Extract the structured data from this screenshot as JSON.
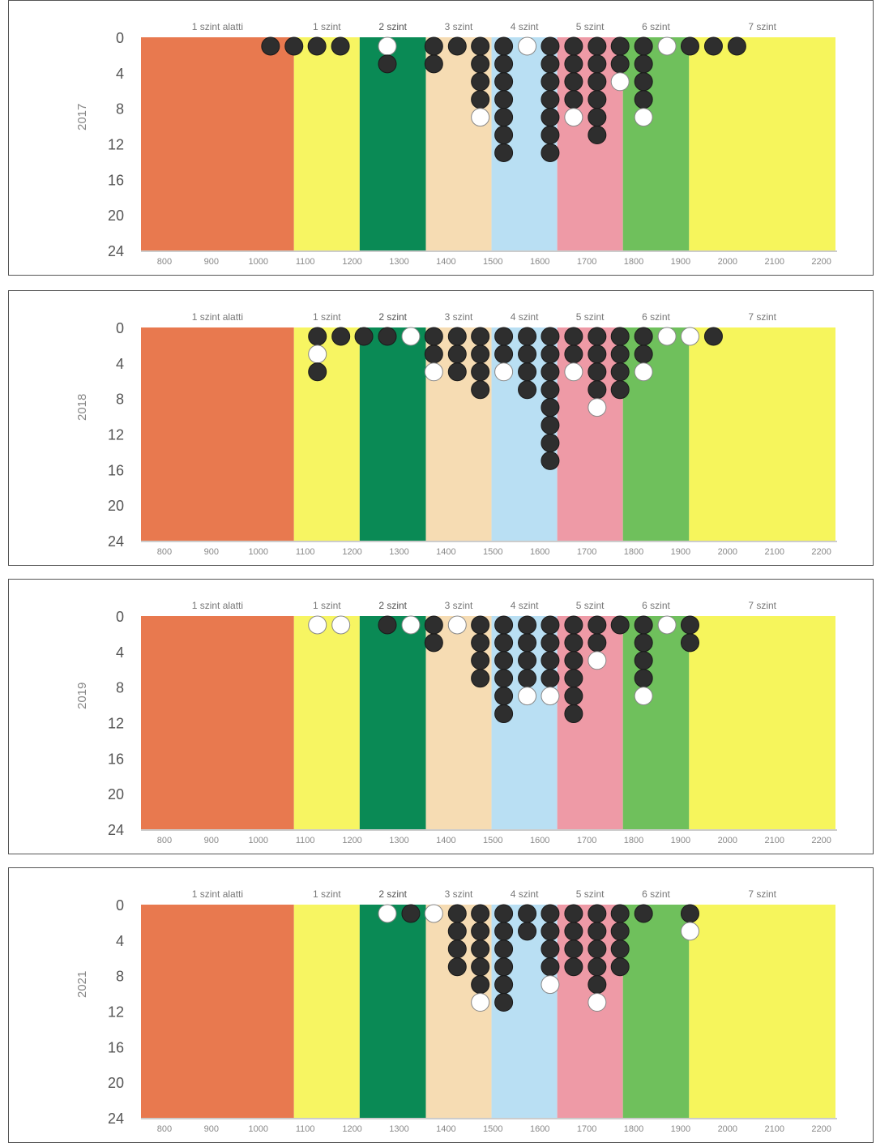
{
  "chart_data": [
    {
      "type": "scatter",
      "ylabel": "2017",
      "ylim": [
        0,
        24
      ],
      "xlim": [
        750,
        2230
      ],
      "yticks": [
        "0",
        "4",
        "8",
        "12",
        "16",
        "20",
        "24"
      ],
      "xticks": [
        "800",
        "900",
        "1000",
        "1100",
        "1200",
        "1300",
        "1400",
        "1500",
        "1600",
        "1700",
        "1800",
        "1900",
        "2000",
        "2100",
        "2200"
      ],
      "bands": [
        {
          "label": "1 szint alatti",
          "from": 750,
          "to": 1076,
          "color": "#e8794f"
        },
        {
          "label": "1 szint",
          "from": 1076,
          "to": 1216,
          "color": "#f7f562"
        },
        {
          "label": "2 szint",
          "from": 1216,
          "to": 1357,
          "color": "#0a8a55"
        },
        {
          "label": "3 szint",
          "from": 1357,
          "to": 1497,
          "color": "#f6dcb3"
        },
        {
          "label": "4 szint",
          "from": 1497,
          "to": 1637,
          "color": "#b9dff3"
        },
        {
          "label": "5 szint",
          "from": 1637,
          "to": 1777,
          "color": "#ee9aa6"
        },
        {
          "label": "6 szint",
          "from": 1777,
          "to": 1918,
          "color": "#6fc05c"
        },
        {
          "label": "7 szint",
          "from": 1918,
          "to": 2230,
          "color": "#f6f55c"
        }
      ],
      "columns": [
        {
          "x": 1026,
          "dots": "D"
        },
        {
          "x": 1076,
          "dots": "D"
        },
        {
          "x": 1125,
          "dots": "D"
        },
        {
          "x": 1175,
          "dots": "D"
        },
        {
          "x": 1275,
          "dots": "WD"
        },
        {
          "x": 1374,
          "dots": "DD"
        },
        {
          "x": 1424,
          "dots": "D"
        },
        {
          "x": 1473,
          "dots": "DDDDW"
        },
        {
          "x": 1523,
          "dots": "DDDDDDD"
        },
        {
          "x": 1573,
          "dots": "W"
        },
        {
          "x": 1622,
          "dots": "DDDDDDD"
        },
        {
          "x": 1672,
          "dots": "DDDDW"
        },
        {
          "x": 1722,
          "dots": "DDDDDD"
        },
        {
          "x": 1771,
          "dots": "DDW"
        },
        {
          "x": 1821,
          "dots": "DDDDW"
        },
        {
          "x": 1871,
          "dots": "W"
        },
        {
          "x": 1920,
          "dots": "D"
        },
        {
          "x": 1970,
          "dots": "D"
        },
        {
          "x": 2020,
          "dots": "D"
        }
      ]
    },
    {
      "type": "scatter",
      "ylabel": "2018",
      "ylim": [
        0,
        24
      ],
      "xlim": [
        750,
        2230
      ],
      "yticks": [
        "0",
        "4",
        "8",
        "12",
        "16",
        "20",
        "24"
      ],
      "xticks": [
        "800",
        "900",
        "1000",
        "1100",
        "1200",
        "1300",
        "1400",
        "1500",
        "1600",
        "1700",
        "1800",
        "1900",
        "2000",
        "2100",
        "2200"
      ],
      "bands": [
        {
          "label": "1 szint alatti",
          "from": 750,
          "to": 1076,
          "color": "#e8794f"
        },
        {
          "label": "1 szint",
          "from": 1076,
          "to": 1216,
          "color": "#f7f562"
        },
        {
          "label": "2 szint",
          "from": 1216,
          "to": 1357,
          "color": "#0a8a55"
        },
        {
          "label": "3 szint",
          "from": 1357,
          "to": 1497,
          "color": "#f6dcb3"
        },
        {
          "label": "4 szint",
          "from": 1497,
          "to": 1637,
          "color": "#b9dff3"
        },
        {
          "label": "5 szint",
          "from": 1637,
          "to": 1777,
          "color": "#ee9aa6"
        },
        {
          "label": "6 szint",
          "from": 1777,
          "to": 1918,
          "color": "#6fc05c"
        },
        {
          "label": "7 szint",
          "from": 1918,
          "to": 2230,
          "color": "#f6f55c"
        }
      ],
      "columns": [
        {
          "x": 1126,
          "dots": "DWD"
        },
        {
          "x": 1176,
          "dots": "D"
        },
        {
          "x": 1225,
          "dots": "D"
        },
        {
          "x": 1275,
          "dots": "D"
        },
        {
          "x": 1325,
          "dots": "W"
        },
        {
          "x": 1374,
          "dots": "DDW"
        },
        {
          "x": 1424,
          "dots": "DDD"
        },
        {
          "x": 1473,
          "dots": "DDDD"
        },
        {
          "x": 1523,
          "dots": "DDW"
        },
        {
          "x": 1573,
          "dots": "DDDD"
        },
        {
          "x": 1622,
          "dots": "DDDDDDDD"
        },
        {
          "x": 1672,
          "dots": "DDW"
        },
        {
          "x": 1722,
          "dots": "DDDDW"
        },
        {
          "x": 1771,
          "dots": "DDDD"
        },
        {
          "x": 1821,
          "dots": "DDW"
        },
        {
          "x": 1871,
          "dots": "W"
        },
        {
          "x": 1920,
          "dots": "W"
        },
        {
          "x": 1970,
          "dots": "D"
        }
      ]
    },
    {
      "type": "scatter",
      "ylabel": "2019",
      "ylim": [
        0,
        24
      ],
      "xlim": [
        750,
        2230
      ],
      "yticks": [
        "0",
        "4",
        "8",
        "12",
        "16",
        "20",
        "24"
      ],
      "xticks": [
        "800",
        "900",
        "1000",
        "1100",
        "1200",
        "1300",
        "1400",
        "1500",
        "1600",
        "1700",
        "1800",
        "1900",
        "2000",
        "2100",
        "2200"
      ],
      "bands": [
        {
          "label": "1 szint alatti",
          "from": 750,
          "to": 1076,
          "color": "#e8794f"
        },
        {
          "label": "1 szint",
          "from": 1076,
          "to": 1216,
          "color": "#f7f562"
        },
        {
          "label": "2 szint",
          "from": 1216,
          "to": 1357,
          "color": "#0a8a55"
        },
        {
          "label": "3 szint",
          "from": 1357,
          "to": 1497,
          "color": "#f6dcb3"
        },
        {
          "label": "4 szint",
          "from": 1497,
          "to": 1637,
          "color": "#b9dff3"
        },
        {
          "label": "5 szint",
          "from": 1637,
          "to": 1777,
          "color": "#ee9aa6"
        },
        {
          "label": "6 szint",
          "from": 1777,
          "to": 1918,
          "color": "#6fc05c"
        },
        {
          "label": "7 szint",
          "from": 1918,
          "to": 2230,
          "color": "#f6f55c"
        }
      ],
      "columns": [
        {
          "x": 1126,
          "dots": "W"
        },
        {
          "x": 1176,
          "dots": "W"
        },
        {
          "x": 1275,
          "dots": "D"
        },
        {
          "x": 1325,
          "dots": "W"
        },
        {
          "x": 1374,
          "dots": "DD"
        },
        {
          "x": 1424,
          "dots": "W"
        },
        {
          "x": 1473,
          "dots": "DDDD"
        },
        {
          "x": 1523,
          "dots": "DDDDDD"
        },
        {
          "x": 1573,
          "dots": "DDDDW"
        },
        {
          "x": 1622,
          "dots": "DDDDW"
        },
        {
          "x": 1672,
          "dots": "DDDDDD"
        },
        {
          "x": 1722,
          "dots": "DDW"
        },
        {
          "x": 1771,
          "dots": "D"
        },
        {
          "x": 1821,
          "dots": "DDDDW"
        },
        {
          "x": 1871,
          "dots": "W"
        },
        {
          "x": 1920,
          "dots": "DD"
        }
      ]
    },
    {
      "type": "scatter",
      "ylabel": "2021",
      "ylim": [
        0,
        24
      ],
      "xlim": [
        750,
        2230
      ],
      "yticks": [
        "0",
        "4",
        "8",
        "12",
        "16",
        "20",
        "24"
      ],
      "xticks": [
        "800",
        "900",
        "1000",
        "1100",
        "1200",
        "1300",
        "1400",
        "1500",
        "1600",
        "1700",
        "1800",
        "1900",
        "2000",
        "2100",
        "2200"
      ],
      "bands": [
        {
          "label": "1 szint alatti",
          "from": 750,
          "to": 1076,
          "color": "#e8794f"
        },
        {
          "label": "1 szint",
          "from": 1076,
          "to": 1216,
          "color": "#f7f562"
        },
        {
          "label": "2 szint",
          "from": 1216,
          "to": 1357,
          "color": "#0a8a55"
        },
        {
          "label": "3 szint",
          "from": 1357,
          "to": 1497,
          "color": "#f6dcb3"
        },
        {
          "label": "4 szint",
          "from": 1497,
          "to": 1637,
          "color": "#b9dff3"
        },
        {
          "label": "5 szint",
          "from": 1637,
          "to": 1777,
          "color": "#ee9aa6"
        },
        {
          "label": "6 szint",
          "from": 1777,
          "to": 1918,
          "color": "#6fc05c"
        },
        {
          "label": "7 szint",
          "from": 1918,
          "to": 2230,
          "color": "#f6f55c"
        }
      ],
      "columns": [
        {
          "x": 1275,
          "dots": "W"
        },
        {
          "x": 1325,
          "dots": "D"
        },
        {
          "x": 1374,
          "dots": "W"
        },
        {
          "x": 1424,
          "dots": "DDDD"
        },
        {
          "x": 1473,
          "dots": "DDDDDW"
        },
        {
          "x": 1523,
          "dots": "DDDDDD"
        },
        {
          "x": 1573,
          "dots": "DD"
        },
        {
          "x": 1622,
          "dots": "DDDDW"
        },
        {
          "x": 1672,
          "dots": "DDDD"
        },
        {
          "x": 1722,
          "dots": "DDDDDW"
        },
        {
          "x": 1771,
          "dots": "DDDD"
        },
        {
          "x": 1821,
          "dots": "D"
        },
        {
          "x": 1920,
          "dots": "DW"
        }
      ]
    }
  ]
}
